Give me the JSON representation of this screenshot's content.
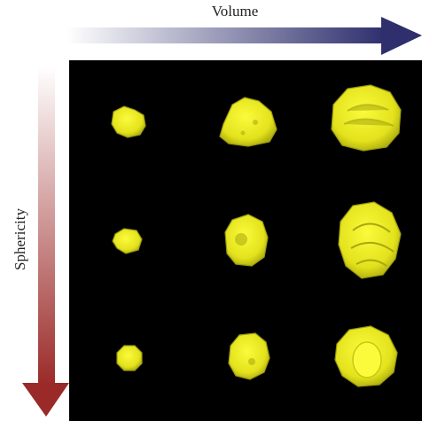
{
  "labels": {
    "horizontal": "Volume",
    "vertical": "Sphericity"
  }
}
